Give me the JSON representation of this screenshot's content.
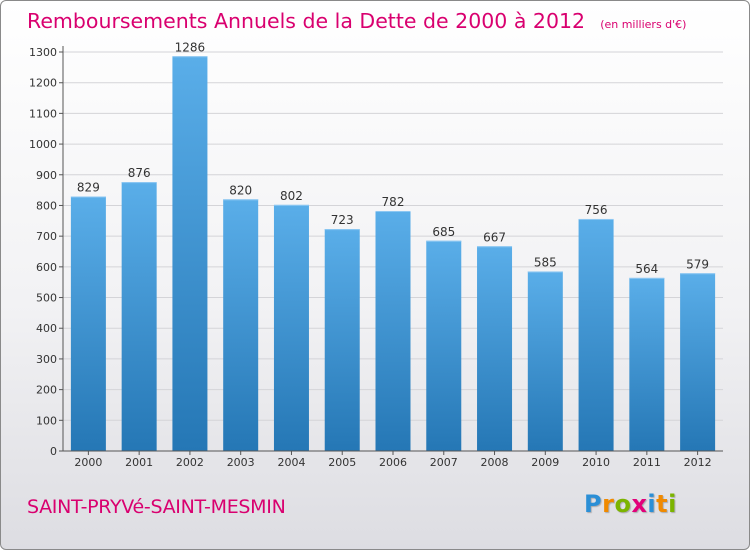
{
  "title": "Remboursements Annuels de la Dette de 2000 à 2012",
  "unit": "(en milliers d'€)",
  "town": "SAINT-PRYVé-SAINT-MESMIN",
  "logo": {
    "letters": [
      "P",
      "r",
      "o",
      "x",
      "i",
      "t",
      "i"
    ],
    "colors": [
      "#2b8fd6",
      "#f08a00",
      "#7cb400",
      "#e2007a",
      "#2b8fd6",
      "#f08a00",
      "#7cb400"
    ]
  },
  "colors": {
    "title": "#d9006f",
    "bar_top": "#5aaee9",
    "bar_bottom": "#2577b5",
    "grid": "#d4d4d8",
    "axis": "#555555"
  },
  "chart_data": {
    "type": "bar",
    "categories": [
      "2000",
      "2001",
      "2002",
      "2003",
      "2004",
      "2005",
      "2006",
      "2007",
      "2008",
      "2009",
      "2010",
      "2011",
      "2012"
    ],
    "values": [
      829,
      876,
      1286,
      820,
      802,
      723,
      782,
      685,
      667,
      585,
      756,
      564,
      579
    ],
    "ylim": [
      0,
      1300
    ],
    "yticks": [
      0,
      100,
      200,
      300,
      400,
      500,
      600,
      700,
      800,
      900,
      1000,
      1100,
      1200,
      1300
    ],
    "grid": true,
    "data_labels": true
  }
}
